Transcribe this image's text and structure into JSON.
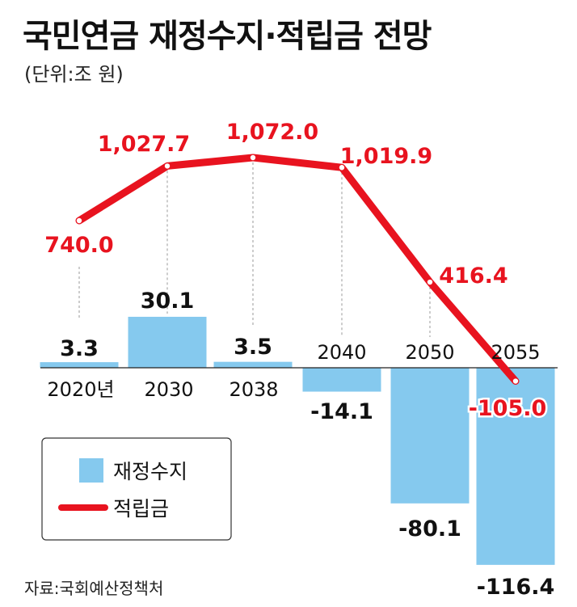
{
  "title": "국민연금 재정수지·적립금 전망",
  "unit": "(단위:조 원)",
  "source": "자료:국회예산정책처",
  "colors": {
    "bar": "#85c9ee",
    "line": "#e8131f",
    "guide": "#999999",
    "axis": "#222222"
  },
  "legend": [
    {
      "label": "재정수지",
      "kind": "bar"
    },
    {
      "label": "적립금",
      "kind": "line"
    }
  ],
  "chart_data": {
    "type": "bar+line",
    "categories": [
      "2020년",
      "2030",
      "2038",
      "2040",
      "2050",
      "2055"
    ],
    "series": [
      {
        "name": "재정수지",
        "type": "bar",
        "values": [
          3.3,
          30.1,
          3.5,
          -14.1,
          -80.1,
          -116.4
        ],
        "labels": [
          "3.3",
          "30.1",
          "3.5",
          "-14.1",
          "-80.1",
          "-116.4"
        ]
      },
      {
        "name": "적립금",
        "type": "line",
        "values": [
          740.0,
          1027.7,
          1072.0,
          1019.9,
          416.4,
          -105.0
        ],
        "labels": [
          "740.0",
          "1,027.7",
          "1,072.0",
          "1,019.9",
          "416.4",
          "-105.0"
        ]
      }
    ]
  }
}
